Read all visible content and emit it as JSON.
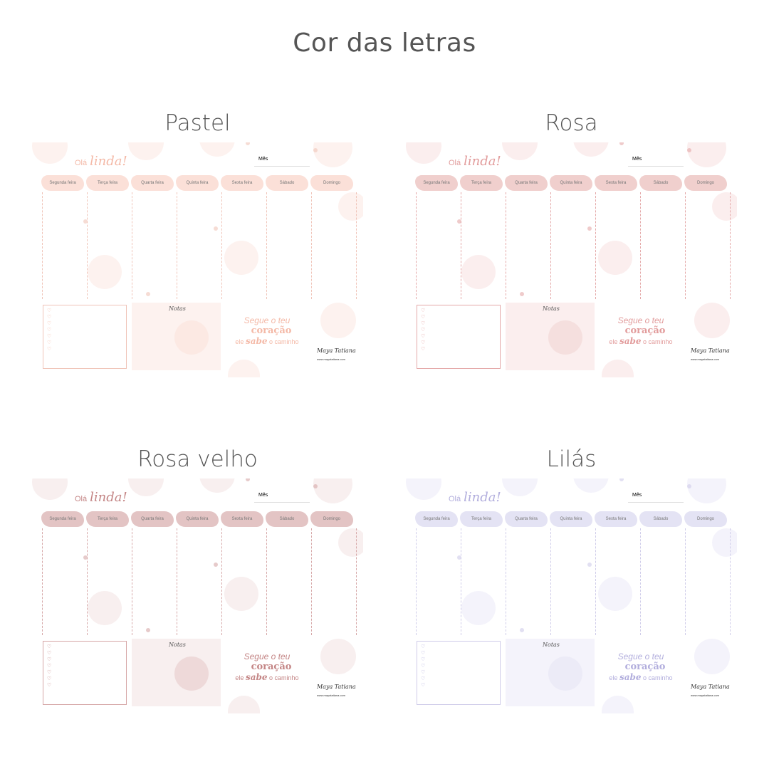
{
  "heading": "Cor das letras",
  "days": [
    "Segunda feira",
    "Terça feira",
    "Quarta feira",
    "Quinta feira",
    "Sexta feira",
    "Sábado",
    "Domingo"
  ],
  "planner_text": {
    "greeting_small": "Olá",
    "greeting_big": "linda!",
    "month_label": "Mês",
    "notes": "Notas",
    "quote_1": "Segue o teu",
    "quote_2": "coração",
    "quote_3a": "ele",
    "quote_3b": "sabe",
    "quote_3c": "o caminho",
    "signature": "Maya Tatiana",
    "signature_site": "www.mayatatiana.com"
  },
  "variants": [
    {
      "title": "Pastel",
      "tab": "#fbe0d8",
      "accent": "#f4b9a7",
      "bubble": "#fdf2ef",
      "line": "#f0c4b8"
    },
    {
      "title": "Rosa",
      "tab": "#f0cfcd",
      "accent": "#e29c9c",
      "bubble": "#fbeeee",
      "line": "#e4a8a8"
    },
    {
      "title": "Rosa velho",
      "tab": "#e3c4c4",
      "accent": "#c48686",
      "bubble": "#f8efef",
      "line": "#d6a7a7"
    },
    {
      "title": "Lilás",
      "tab": "#e4e3f4",
      "accent": "#b2aedd",
      "bubble": "#f4f3fb",
      "line": "#cfcce9"
    }
  ]
}
